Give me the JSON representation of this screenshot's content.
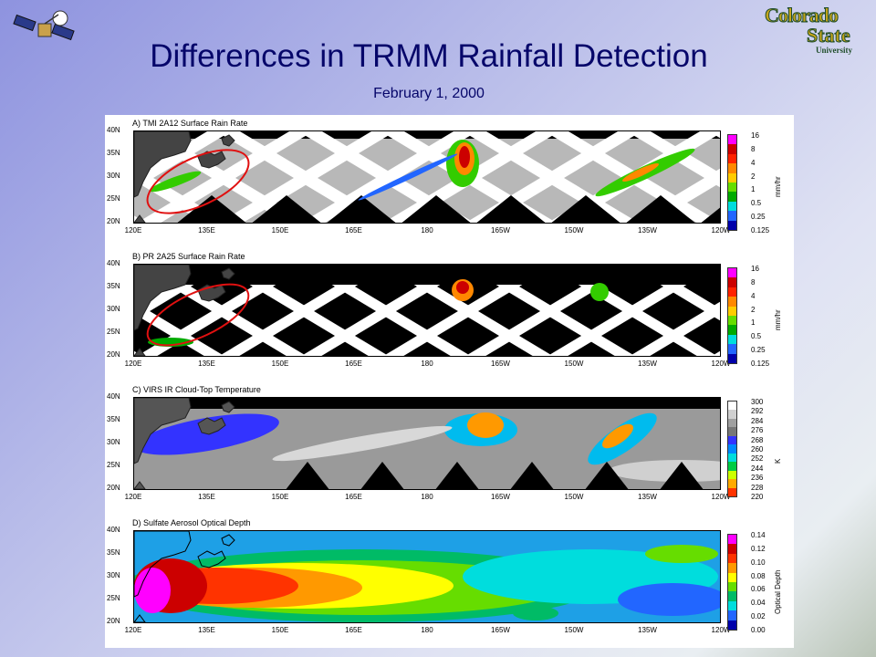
{
  "title": "Differences in TRMM Rainfall Detection",
  "subtitle": "February 1, 2000",
  "logo": {
    "line1": "Colorado",
    "line2": "State",
    "line3": "University"
  },
  "lat_labels": [
    "40N",
    "35N",
    "30N",
    "25N",
    "20N"
  ],
  "lon_labels": [
    "120E",
    "135E",
    "150E",
    "165E",
    "180",
    "165W",
    "150W",
    "135W",
    "120W"
  ],
  "panels": [
    {
      "label": "A) TMI 2A12 Surface Rain Rate",
      "unit": "mm/hr",
      "ticks": [
        "16",
        "8",
        "4",
        "2",
        "1",
        "0.5",
        "0.25",
        "0.125"
      ],
      "colors": [
        "#ff00ff",
        "#cc0000",
        "#ff2200",
        "#ff8800",
        "#ffcc00",
        "#66dd00",
        "#00aa00",
        "#00dddd",
        "#2266ff",
        "#0000aa"
      ]
    },
    {
      "label": "B) PR 2A25 Surface Rain Rate",
      "unit": "mm/hr",
      "ticks": [
        "16",
        "8",
        "4",
        "2",
        "1",
        "0.5",
        "0.25",
        "0.125"
      ],
      "colors": [
        "#ff00ff",
        "#cc0000",
        "#ff2200",
        "#ff8800",
        "#ffcc00",
        "#66dd00",
        "#00aa00",
        "#00dddd",
        "#2266ff",
        "#0000aa"
      ]
    },
    {
      "label": "C) VIRS IR Cloud-Top Temperature",
      "unit": "K",
      "ticks": [
        "300",
        "292",
        "284",
        "276",
        "268",
        "260",
        "252",
        "244",
        "236",
        "228",
        "220"
      ],
      "colors": [
        "#ffffff",
        "#d0d0d0",
        "#a0a0a0",
        "#777777",
        "#3333ff",
        "#0088ff",
        "#00dddd",
        "#00cc44",
        "#ccff00",
        "#ffaa00",
        "#ff3300"
      ]
    },
    {
      "label": "D) Sulfate Aerosol Optical Depth",
      "unit": "Optical Depth",
      "ticks": [
        "0.14",
        "0.12",
        "0.10",
        "0.08",
        "0.06",
        "0.04",
        "0.02",
        "0.00"
      ],
      "colors": [
        "#ff00ff",
        "#cc0000",
        "#ff3300",
        "#ff9900",
        "#ffff00",
        "#66dd00",
        "#00bb66",
        "#00dddd",
        "#2266ff",
        "#0000aa"
      ]
    }
  ]
}
